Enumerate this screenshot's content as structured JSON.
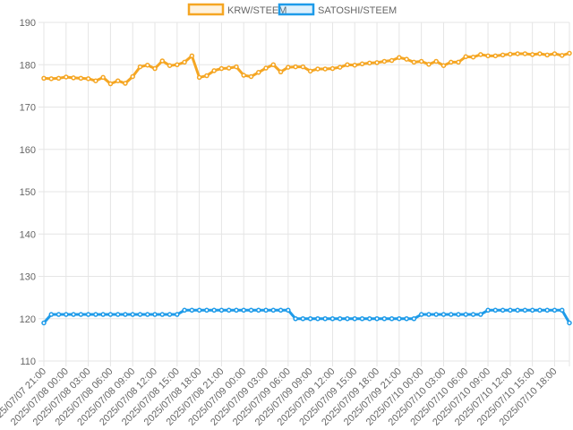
{
  "chart_data": {
    "type": "line",
    "title": "",
    "xlabel": "",
    "ylabel": "",
    "ylim": [
      110,
      190
    ],
    "y_ticks": [
      110,
      120,
      130,
      140,
      150,
      160,
      170,
      180,
      190
    ],
    "grid": true,
    "legend_position": "top-center",
    "x_tick_labels": [
      "2025/07/07 21:00",
      "2025/07/08 00:00",
      "2025/07/08 03:00",
      "2025/07/08 06:00",
      "2025/07/08 09:00",
      "2025/07/08 12:00",
      "2025/07/08 15:00",
      "2025/07/08 18:00",
      "2025/07/08 21:00",
      "2025/07/09 00:00",
      "2025/07/09 03:00",
      "2025/07/09 06:00",
      "2025/07/09 09:00",
      "2025/07/09 12:00",
      "2025/07/09 15:00",
      "2025/07/09 18:00",
      "2025/07/09 21:00",
      "2025/07/10 00:00",
      "2025/07/10 03:00",
      "2025/07/10 06:00",
      "2025/07/10 09:00",
      "2025/07/10 12:00",
      "2025/07/10 15:00",
      "2025/07/10 18:00"
    ],
    "x": [
      "2025/07/07 21:00",
      "2025/07/07 22:00",
      "2025/07/07 23:00",
      "2025/07/08 00:00",
      "2025/07/08 01:00",
      "2025/07/08 02:00",
      "2025/07/08 03:00",
      "2025/07/08 04:00",
      "2025/07/08 05:00",
      "2025/07/08 06:00",
      "2025/07/08 07:00",
      "2025/07/08 08:00",
      "2025/07/08 09:00",
      "2025/07/08 10:00",
      "2025/07/08 11:00",
      "2025/07/08 12:00",
      "2025/07/08 13:00",
      "2025/07/08 14:00",
      "2025/07/08 15:00",
      "2025/07/08 16:00",
      "2025/07/08 17:00",
      "2025/07/08 18:00",
      "2025/07/08 19:00",
      "2025/07/08 20:00",
      "2025/07/08 21:00",
      "2025/07/08 22:00",
      "2025/07/08 23:00",
      "2025/07/09 00:00",
      "2025/07/09 01:00",
      "2025/07/09 02:00",
      "2025/07/09 03:00",
      "2025/07/09 04:00",
      "2025/07/09 05:00",
      "2025/07/09 06:00",
      "2025/07/09 07:00",
      "2025/07/09 08:00",
      "2025/07/09 09:00",
      "2025/07/09 10:00",
      "2025/07/09 11:00",
      "2025/07/09 12:00",
      "2025/07/09 13:00",
      "2025/07/09 14:00",
      "2025/07/09 15:00",
      "2025/07/09 16:00",
      "2025/07/09 17:00",
      "2025/07/09 18:00",
      "2025/07/09 19:00",
      "2025/07/09 20:00",
      "2025/07/09 21:00",
      "2025/07/09 22:00",
      "2025/07/09 23:00",
      "2025/07/10 00:00",
      "2025/07/10 01:00",
      "2025/07/10 02:00",
      "2025/07/10 03:00",
      "2025/07/10 04:00",
      "2025/07/10 05:00",
      "2025/07/10 06:00",
      "2025/07/10 07:00",
      "2025/07/10 08:00",
      "2025/07/10 09:00",
      "2025/07/10 10:00",
      "2025/07/10 11:00",
      "2025/07/10 12:00",
      "2025/07/10 13:00",
      "2025/07/10 14:00",
      "2025/07/10 15:00",
      "2025/07/10 16:00",
      "2025/07/10 17:00",
      "2025/07/10 18:00",
      "2025/07/10 19:00",
      "2025/07/10 20:00"
    ],
    "series": [
      {
        "name": "KRW/STEEM",
        "color": "#f5a623",
        "values": [
          176.8,
          176.7,
          176.8,
          177.1,
          176.9,
          176.8,
          176.7,
          176.2,
          177.0,
          175.5,
          176.2,
          175.6,
          177.2,
          179.5,
          179.9,
          179.1,
          180.9,
          179.8,
          180.0,
          180.6,
          182.1,
          177.0,
          177.4,
          178.6,
          179.1,
          179.2,
          179.5,
          177.5,
          177.2,
          178.2,
          179.2,
          180.0,
          178.3,
          179.4,
          179.5,
          179.5,
          178.5,
          179.0,
          179.0,
          179.1,
          179.4,
          180.0,
          179.9,
          180.2,
          180.4,
          180.5,
          180.8,
          181.0,
          181.7,
          181.3,
          180.6,
          180.8,
          180.1,
          180.8,
          179.8,
          180.6,
          180.6,
          181.9,
          181.8,
          182.4,
          182.1,
          182.1,
          182.3,
          182.5,
          182.6,
          182.6,
          182.4,
          182.6,
          182.3,
          182.6,
          182.2,
          182.7
        ]
      },
      {
        "name": "SATOSHI/STEEM",
        "color": "#1e9be9",
        "values": [
          119.0,
          121.0,
          121.0,
          121.0,
          121.0,
          121.0,
          121.0,
          121.0,
          121.0,
          121.0,
          121.0,
          121.0,
          121.0,
          121.0,
          121.0,
          121.0,
          121.0,
          121.0,
          121.0,
          122.0,
          122.0,
          122.0,
          122.0,
          122.0,
          122.0,
          122.0,
          122.0,
          122.0,
          122.0,
          122.0,
          122.0,
          122.0,
          122.0,
          122.0,
          120.0,
          120.0,
          120.0,
          120.0,
          120.0,
          120.0,
          120.0,
          120.0,
          120.0,
          120.0,
          120.0,
          120.0,
          120.0,
          120.0,
          120.0,
          120.0,
          120.0,
          121.0,
          121.0,
          121.0,
          121.0,
          121.0,
          121.0,
          121.0,
          121.0,
          121.0,
          122.0,
          122.0,
          122.0,
          122.0,
          122.0,
          122.0,
          122.0,
          122.0,
          122.0,
          122.0,
          122.0,
          119.0
        ]
      }
    ]
  }
}
